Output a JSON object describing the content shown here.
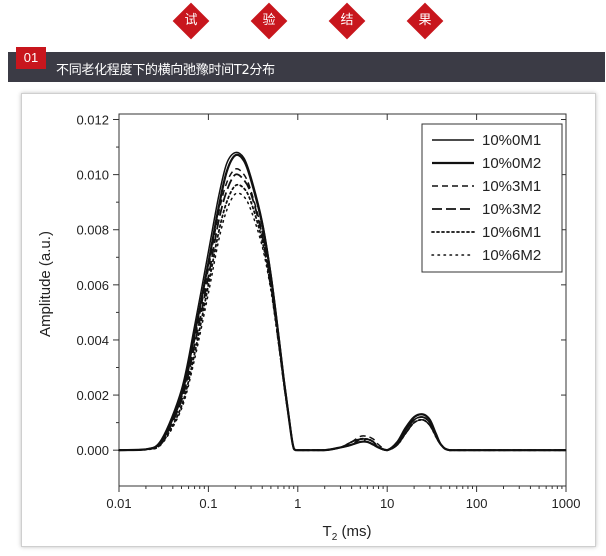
{
  "header": {
    "diamonds": [
      "试",
      "验",
      "结",
      "果"
    ],
    "section_number": "01",
    "section_title": "不同老化程度下的横向弛豫时间T2分布"
  },
  "colors": {
    "accent": "#c8161d",
    "bar": "#3b3b45"
  },
  "chart_data": {
    "type": "line",
    "xscale": "log",
    "xlabel_main": "T",
    "xlabel_sub": "2",
    "xlabel_unit": " (ms)",
    "ylabel": "Amplitude (a.u.)",
    "xlim": [
      0.01,
      1000
    ],
    "ylim": [
      -0.0013,
      0.0122
    ],
    "x_ticks": [
      "0.01",
      "0.1",
      "1",
      "10",
      "100",
      "1000"
    ],
    "x_tick_values": [
      0.01,
      0.1,
      1,
      10,
      100,
      1000
    ],
    "y_ticks": [
      "0.000",
      "0.002",
      "0.004",
      "0.006",
      "0.008",
      "0.010",
      "0.012"
    ],
    "y_tick_values": [
      0,
      0.002,
      0.004,
      0.006,
      0.008,
      0.01,
      0.012
    ],
    "grid": false,
    "legend_position": "top-right",
    "series": [
      {
        "name": "10%0M1",
        "style": "solid",
        "width": 1.5,
        "x": [
          0.01,
          0.02,
          0.03,
          0.05,
          0.07,
          0.1,
          0.13,
          0.16,
          0.2,
          0.25,
          0.3,
          0.4,
          0.5,
          0.6,
          0.7,
          0.8,
          0.88,
          0.95,
          1.2,
          2,
          3,
          4,
          5,
          6,
          7,
          8,
          10,
          13,
          16,
          20,
          25,
          30,
          35,
          40,
          50,
          100,
          1000
        ],
        "y": [
          0,
          3e-05,
          0.0004,
          0.0022,
          0.0045,
          0.0072,
          0.0092,
          0.0104,
          0.0108,
          0.0106,
          0.0099,
          0.0083,
          0.0064,
          0.0044,
          0.0026,
          0.0012,
          0.0002,
          0,
          0,
          0,
          0.0001,
          0.0003,
          0.0004,
          0.0004,
          0.0003,
          0.0001,
          0,
          0.0002,
          0.0007,
          0.0011,
          0.0012,
          0.001,
          0.0006,
          0.0002,
          0,
          0,
          0
        ]
      },
      {
        "name": "10%0M2",
        "style": "solid",
        "width": 2.2,
        "x": [
          0.01,
          0.02,
          0.03,
          0.05,
          0.07,
          0.1,
          0.13,
          0.16,
          0.2,
          0.25,
          0.3,
          0.4,
          0.5,
          0.6,
          0.7,
          0.8,
          0.88,
          0.95,
          1.2,
          2,
          3,
          4,
          5,
          6,
          7,
          8,
          10,
          13,
          16,
          20,
          25,
          30,
          35,
          40,
          50,
          100,
          1000
        ],
        "y": [
          0,
          3e-05,
          0.00035,
          0.002,
          0.0042,
          0.0068,
          0.0088,
          0.0101,
          0.0107,
          0.0105,
          0.0098,
          0.0082,
          0.0063,
          0.0043,
          0.0025,
          0.0011,
          0.0002,
          0,
          0,
          0,
          0.0001,
          0.0002,
          0.0003,
          0.0003,
          0.0002,
          0.0001,
          0,
          0.0003,
          0.0008,
          0.0012,
          0.0013,
          0.0011,
          0.0006,
          0.0002,
          0,
          0,
          0
        ]
      },
      {
        "name": "10%3M1",
        "style": "dash-short",
        "width": 1.5,
        "x": [
          0.01,
          0.02,
          0.03,
          0.05,
          0.07,
          0.1,
          0.13,
          0.16,
          0.2,
          0.25,
          0.3,
          0.4,
          0.5,
          0.6,
          0.7,
          0.8,
          0.88,
          0.95,
          1.2,
          2,
          3,
          4,
          5,
          6,
          7,
          8,
          10,
          13,
          16,
          20,
          25,
          30,
          35,
          40,
          50,
          100,
          1000
        ],
        "y": [
          0,
          3e-05,
          0.0003,
          0.0019,
          0.004,
          0.0066,
          0.0086,
          0.0097,
          0.0102,
          0.01,
          0.0094,
          0.0079,
          0.0061,
          0.0042,
          0.0025,
          0.0011,
          0.0002,
          0,
          0,
          0,
          0.0001,
          0.0003,
          0.0005,
          0.0005,
          0.0004,
          0.0002,
          0,
          0.0002,
          0.0006,
          0.001,
          0.0011,
          0.0009,
          0.0005,
          0.0002,
          0,
          0,
          0
        ]
      },
      {
        "name": "10%3M2",
        "style": "dash-long",
        "width": 1.8,
        "x": [
          0.01,
          0.02,
          0.03,
          0.05,
          0.07,
          0.1,
          0.13,
          0.16,
          0.2,
          0.25,
          0.3,
          0.4,
          0.5,
          0.6,
          0.7,
          0.8,
          0.88,
          0.95,
          1.2,
          2,
          3,
          4,
          5,
          6,
          7,
          8,
          10,
          13,
          16,
          20,
          25,
          30,
          35,
          40,
          50,
          100,
          1000
        ],
        "y": [
          0,
          3e-05,
          0.0003,
          0.0018,
          0.0038,
          0.0063,
          0.0083,
          0.0094,
          0.01,
          0.0098,
          0.0093,
          0.0078,
          0.006,
          0.0041,
          0.0024,
          0.0011,
          0.0002,
          0,
          0,
          0,
          0.0001,
          0.0002,
          0.0004,
          0.0004,
          0.0003,
          0.0001,
          0,
          0.0002,
          0.0007,
          0.0011,
          0.0012,
          0.001,
          0.0005,
          0.0002,
          0,
          0,
          0
        ]
      },
      {
        "name": "10%6M1",
        "style": "dot",
        "width": 1.8,
        "x": [
          0.01,
          0.02,
          0.03,
          0.05,
          0.07,
          0.1,
          0.13,
          0.16,
          0.2,
          0.25,
          0.3,
          0.4,
          0.5,
          0.6,
          0.7,
          0.8,
          0.88,
          0.95,
          1.2,
          2,
          3,
          4,
          5,
          6,
          7,
          8,
          10,
          13,
          16,
          20,
          25,
          30,
          35,
          40,
          50,
          100,
          1000
        ],
        "y": [
          0,
          2e-05,
          0.00025,
          0.0016,
          0.0035,
          0.006,
          0.0079,
          0.009,
          0.0096,
          0.0095,
          0.009,
          0.0076,
          0.0059,
          0.0041,
          0.0024,
          0.0011,
          0.0002,
          0,
          0,
          0,
          0.0001,
          0.0003,
          0.0004,
          0.0004,
          0.0003,
          0.0001,
          0,
          0.0002,
          0.0006,
          0.001,
          0.0011,
          0.0009,
          0.0005,
          0.0002,
          0,
          0,
          0
        ]
      },
      {
        "name": "10%6M2",
        "style": "dot-sparse",
        "width": 1.5,
        "x": [
          0.01,
          0.02,
          0.03,
          0.05,
          0.07,
          0.1,
          0.13,
          0.16,
          0.2,
          0.25,
          0.3,
          0.4,
          0.5,
          0.6,
          0.7,
          0.8,
          0.88,
          0.95,
          1.2,
          2,
          3,
          4,
          5,
          6,
          7,
          8,
          10,
          13,
          16,
          20,
          25,
          30,
          35,
          40,
          50,
          100,
          1000
        ],
        "y": [
          0,
          2e-05,
          0.00022,
          0.0015,
          0.0033,
          0.0057,
          0.0076,
          0.0087,
          0.0093,
          0.0092,
          0.0087,
          0.0074,
          0.0058,
          0.004,
          0.0024,
          0.0011,
          0.0002,
          0,
          0,
          0,
          0.0001,
          0.0002,
          0.0003,
          0.0004,
          0.0003,
          0.0001,
          0,
          0.0002,
          0.0006,
          0.001,
          0.0011,
          0.0009,
          0.0005,
          0.0002,
          0,
          0,
          0
        ]
      }
    ]
  }
}
